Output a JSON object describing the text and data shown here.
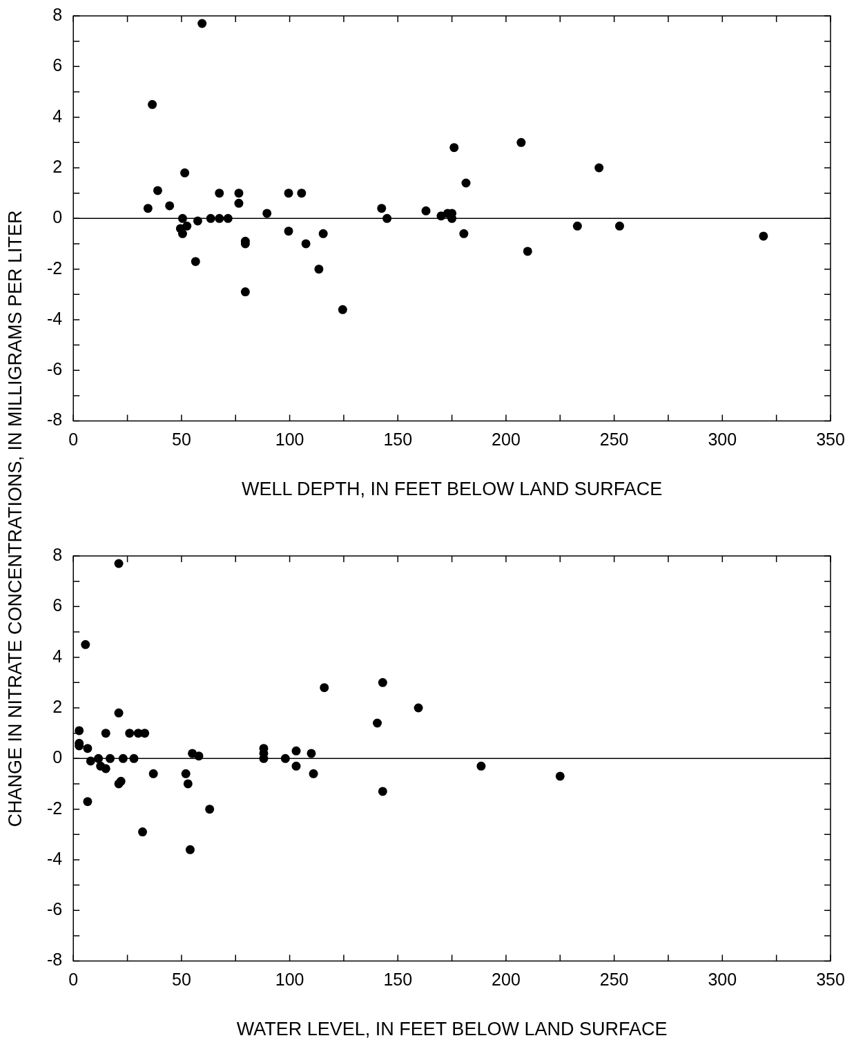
{
  "chart_data": [
    {
      "type": "scatter",
      "xlabel": "WELL DEPTH, IN FEET BELOW LAND SURFACE",
      "ylabel": "CHANGE IN NITRATE CONCENTRATIONS, IN MILLIGRAMS PER LITER",
      "marker": "circle",
      "grid": false,
      "legend": false,
      "xlim": [
        0,
        350
      ],
      "ylim": [
        -8,
        8
      ],
      "xticks": [
        0,
        {
          "value": 25,
          "label": null
        },
        50,
        {
          "value": 75,
          "label": null
        },
        100,
        {
          "value": 125,
          "label": null
        },
        150,
        {
          "value": 175,
          "label": null
        },
        200,
        {
          "value": 225,
          "label": null
        },
        250,
        {
          "value": 275,
          "label": null
        },
        300,
        {
          "value": 325,
          "label": null
        },
        350
      ],
      "yticks": [
        -8,
        {
          "value": -7,
          "label": null
        },
        -6,
        {
          "value": -5,
          "label": null
        },
        -4,
        {
          "value": -3,
          "label": null
        },
        -2,
        {
          "value": -1,
          "label": null
        },
        0,
        {
          "value": 1,
          "label": null
        },
        2,
        {
          "value": 3,
          "label": null
        },
        4,
        {
          "value": 5,
          "label": null
        },
        6,
        {
          "value": 7,
          "label": null
        },
        8
      ],
      "ref_lines": [
        {
          "axis": "y",
          "value": 0,
          "color": "#000000"
        }
      ],
      "series": [
        {
          "color": "#000000",
          "x": [
            34.5,
            36.5,
            39,
            44.5,
            49.5,
            50.5,
            50.5,
            51.5,
            52.5,
            56.5,
            57.5,
            59.5,
            63.5,
            67.5,
            67.5,
            71.5,
            76.5,
            76.5,
            79.5,
            79.5,
            79.5,
            89.5,
            99.5,
            99.5,
            105.5,
            107.5,
            113.5,
            115.5,
            124.5,
            142.5,
            145,
            163,
            170,
            173,
            175,
            175,
            176,
            180.5,
            181.5,
            207,
            210,
            233,
            243,
            252.5,
            319
          ],
          "values": [
            0.4,
            4.5,
            1.1,
            0.5,
            -0.4,
            0,
            -0.6,
            1.8,
            -0.3,
            -1.7,
            -0.1,
            7.7,
            0,
            1.0,
            0,
            0,
            1.0,
            0.6,
            -0.9,
            -1.0,
            -2.9,
            0.2,
            1.0,
            -0.5,
            1.0,
            -1.0,
            -2.0,
            -0.6,
            -3.6,
            0.4,
            0,
            0.3,
            0.1,
            0.2,
            0.2,
            0,
            2.8,
            -0.6,
            1.4,
            3.0,
            -1.3,
            -0.3,
            2.0,
            -0.3,
            -0.7
          ]
        }
      ]
    },
    {
      "type": "scatter",
      "xlabel": "WATER LEVEL, IN FEET BELOW LAND SURFACE",
      "marker": "circle",
      "grid": false,
      "legend": false,
      "xlim": [
        0,
        350
      ],
      "ylim": [
        -8,
        8
      ],
      "xticks": [
        0,
        {
          "value": 25,
          "label": null
        },
        50,
        {
          "value": 75,
          "label": null
        },
        100,
        {
          "value": 125,
          "label": null
        },
        150,
        {
          "value": 175,
          "label": null
        },
        200,
        {
          "value": 225,
          "label": null
        },
        250,
        {
          "value": 275,
          "label": null
        },
        300,
        {
          "value": 325,
          "label": null
        },
        350
      ],
      "yticks": [
        -8,
        {
          "value": -7,
          "label": null
        },
        -6,
        {
          "value": -5,
          "label": null
        },
        -4,
        {
          "value": -3,
          "label": null
        },
        -2,
        {
          "value": -1,
          "label": null
        },
        0,
        {
          "value": 1,
          "label": null
        },
        2,
        {
          "value": 3,
          "label": null
        },
        4,
        {
          "value": 5,
          "label": null
        },
        6,
        {
          "value": 7,
          "label": null
        },
        8
      ],
      "ref_lines": [
        {
          "axis": "y",
          "value": 0,
          "color": "#000000"
        }
      ],
      "series": [
        {
          "color": "#000000",
          "x": [
            2.7,
            2.7,
            2.7,
            5.6,
            6.6,
            6.6,
            8,
            11.6,
            12.6,
            15,
            15,
            17,
            21,
            21,
            21,
            22,
            23,
            26,
            28,
            30,
            33,
            32,
            37,
            52,
            53,
            55,
            54,
            58,
            63,
            88,
            88,
            88,
            98,
            103,
            103,
            110,
            111,
            116,
            140.5,
            143,
            143,
            159.5,
            188.5,
            225
          ],
          "values": [
            1.1,
            0.6,
            0.5,
            4.5,
            0.4,
            -1.7,
            -0.1,
            0,
            -0.3,
            -0.4,
            1.0,
            0,
            7.7,
            1.8,
            -1.0,
            -0.9,
            0,
            1.0,
            0,
            1.0,
            1.0,
            -2.9,
            -0.6,
            -0.6,
            -1.0,
            0.2,
            -3.6,
            0.1,
            -2.0,
            0.4,
            0.2,
            0,
            0,
            0.3,
            -0.3,
            0.2,
            -0.6,
            2.8,
            1.4,
            -1.3,
            3.0,
            2.0,
            -0.3,
            -0.7
          ]
        }
      ]
    }
  ]
}
